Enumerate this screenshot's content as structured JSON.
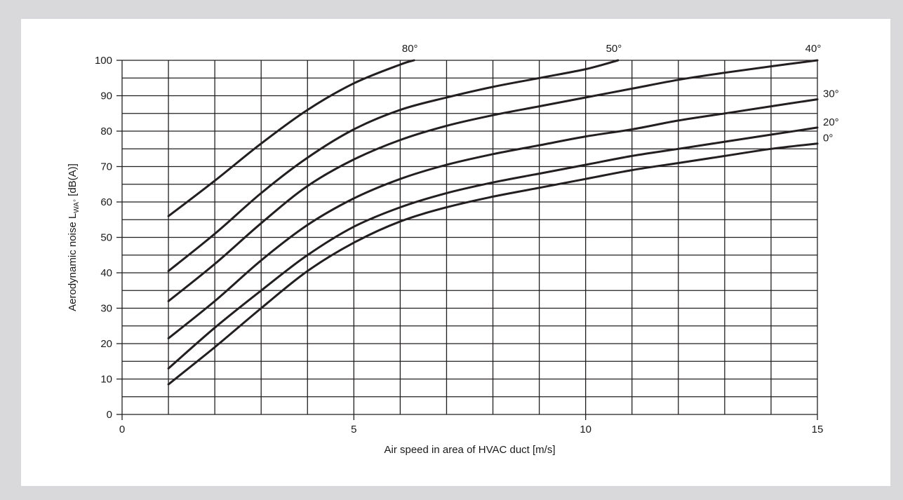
{
  "chart_data": {
    "type": "line",
    "xlabel": "Air speed in area of HVAC duct [m/s]",
    "ylabel_parts": [
      "Aerodynamic noise L",
      "WA°",
      " [dB(A)]"
    ],
    "xlim": [
      0,
      15
    ],
    "ylim": [
      0,
      100
    ],
    "x_ticks": [
      0,
      5,
      10,
      15
    ],
    "x_ticks_text": [
      "0",
      "5",
      "10",
      "15"
    ],
    "y_ticks": [
      0,
      10,
      20,
      30,
      40,
      50,
      60,
      70,
      80,
      90,
      100
    ],
    "y_ticks_text": [
      "0",
      "10",
      "20",
      "30",
      "40",
      "50",
      "60",
      "70",
      "80",
      "90",
      "100"
    ],
    "grid": true,
    "grid_x_step": 1,
    "grid_y_step": 5,
    "grid_x_from": 1,
    "line_color": "#231f20",
    "series": [
      {
        "name": "80°",
        "x": [
          1,
          2,
          3,
          4,
          5,
          6,
          6.3
        ],
        "y": [
          56,
          66,
          76.5,
          86,
          93.5,
          98.8,
          100
        ]
      },
      {
        "name": "50°",
        "x": [
          1,
          2,
          3,
          4,
          5,
          6,
          7,
          8,
          9,
          10,
          10.7
        ],
        "y": [
          40.5,
          51,
          62.5,
          72.5,
          80.5,
          86,
          89.5,
          92.5,
          95,
          97.5,
          100
        ]
      },
      {
        "name": "40°",
        "x": [
          1,
          2,
          3,
          4,
          5,
          6,
          7,
          8,
          9,
          10,
          11,
          12,
          13,
          14,
          15
        ],
        "y": [
          32,
          42.5,
          54,
          64.5,
          72,
          77.5,
          81.5,
          84.5,
          87,
          89.5,
          92,
          94.5,
          96.5,
          98.3,
          100
        ]
      },
      {
        "name": "30°",
        "x": [
          1,
          2,
          3,
          4,
          5,
          6,
          7,
          8,
          9,
          10,
          11,
          12,
          13,
          14,
          15
        ],
        "y": [
          21.5,
          32,
          43.5,
          53.5,
          61,
          66.5,
          70.5,
          73.5,
          76,
          78.5,
          80.5,
          83,
          85,
          87,
          89
        ]
      },
      {
        "name": "20°",
        "x": [
          1,
          2,
          3,
          4,
          5,
          6,
          7,
          8,
          9,
          10,
          11,
          12,
          13,
          14,
          15
        ],
        "y": [
          13,
          24.5,
          35,
          45,
          53,
          58.5,
          62.5,
          65.5,
          68,
          70.5,
          73,
          75,
          77,
          79,
          81
        ]
      },
      {
        "name": "0°",
        "x": [
          1,
          2,
          3,
          4,
          5,
          6,
          7,
          8,
          9,
          10,
          11,
          12,
          13,
          14,
          15
        ],
        "y": [
          8.5,
          19,
          30,
          40.5,
          48.5,
          54.5,
          58.5,
          61.5,
          64,
          66.5,
          69,
          71,
          73,
          75,
          76.5
        ]
      }
    ]
  }
}
